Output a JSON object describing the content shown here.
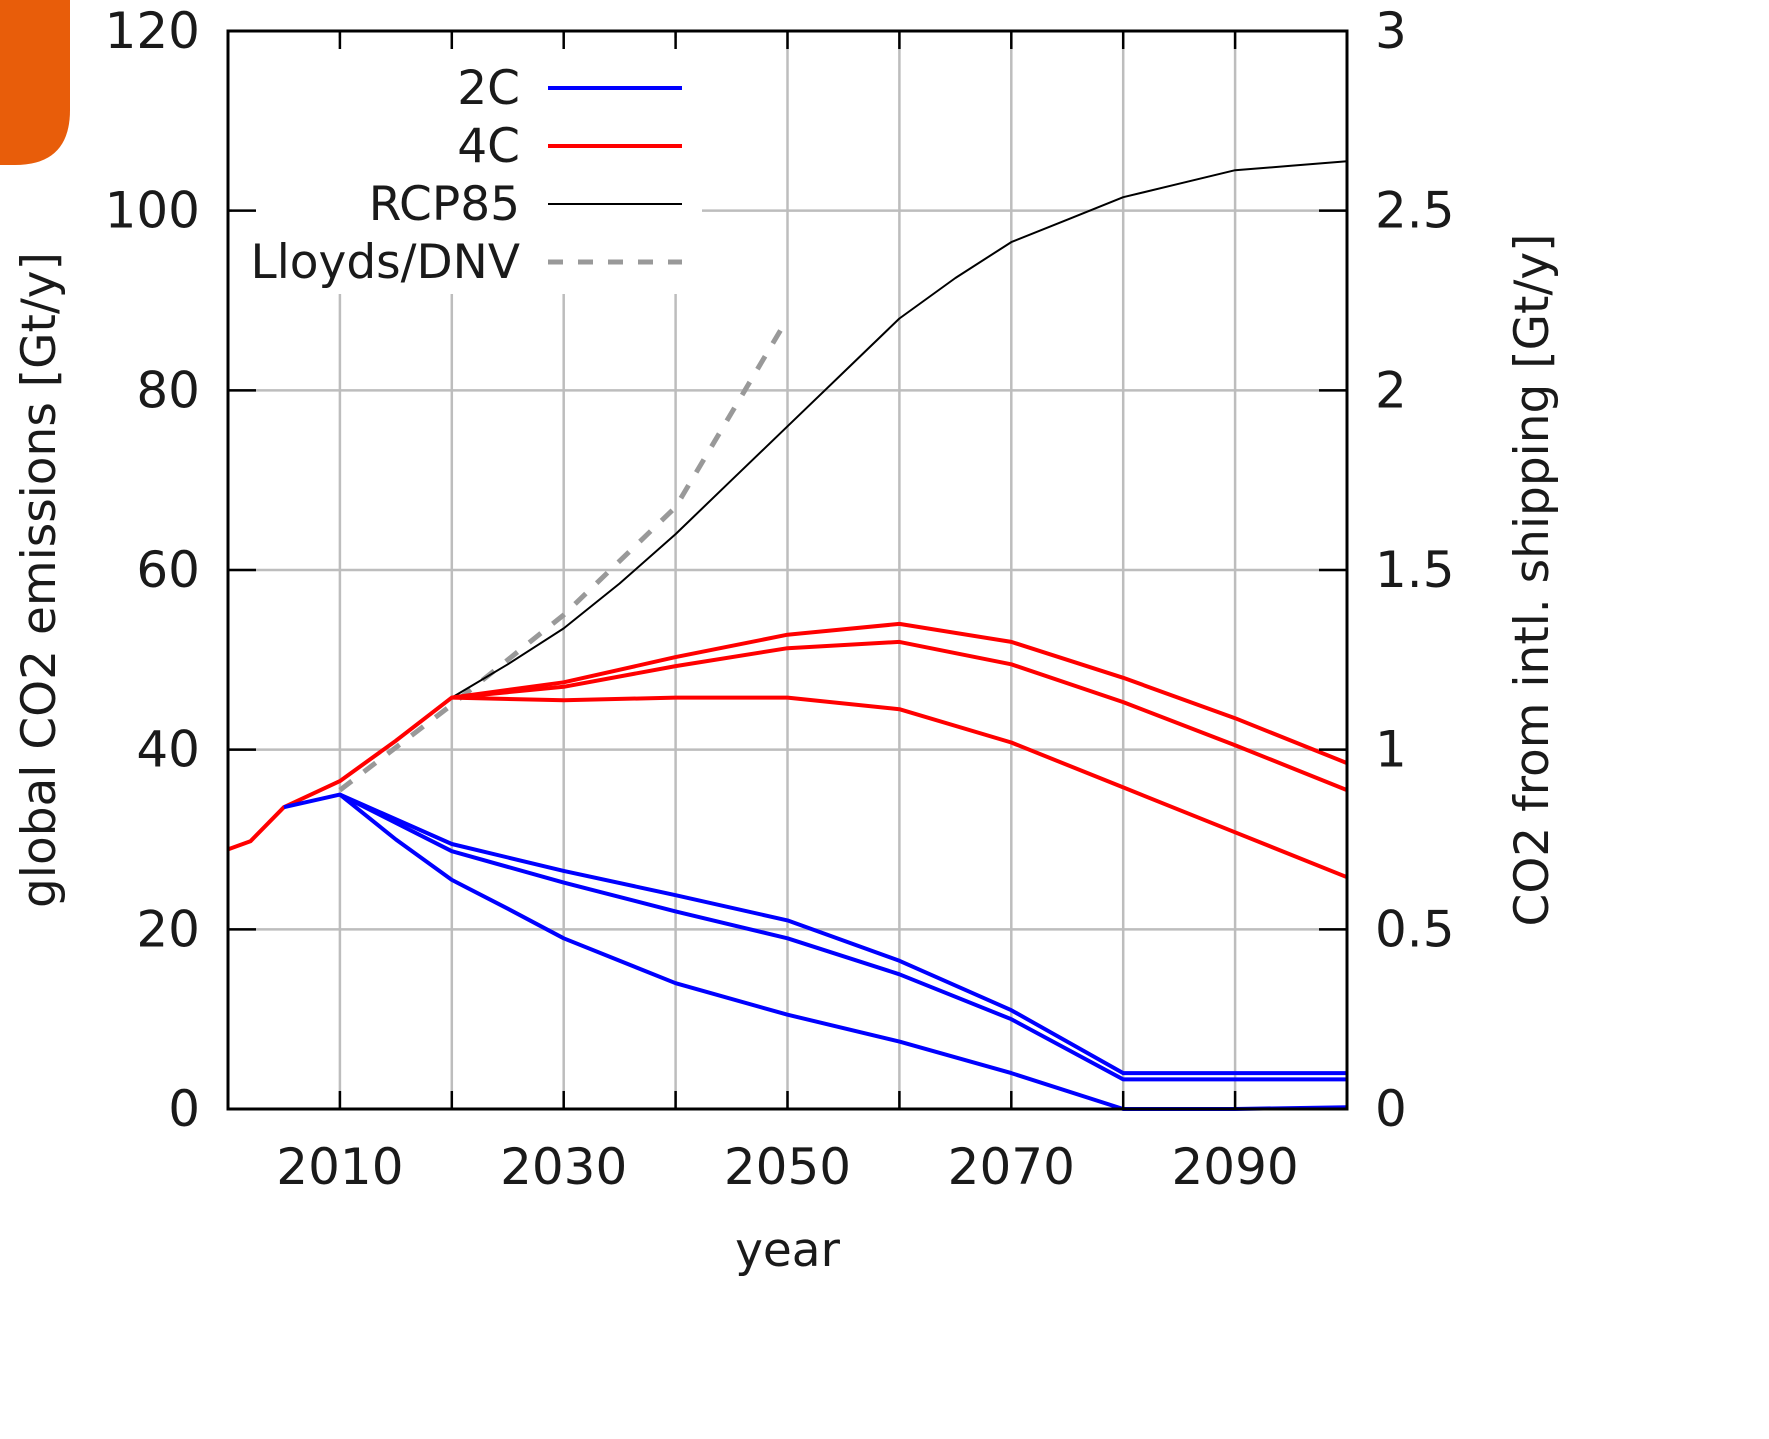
{
  "chart_data": {
    "type": "line",
    "xlabel": "year",
    "ylabel": "global CO2 emissions [Gt/y]",
    "y2label": "CO2 from intl. shipping [Gt/y]",
    "xlim": [
      2000,
      2100
    ],
    "ylim": [
      0,
      120
    ],
    "y2lim": [
      0,
      3
    ],
    "x_ticks": [
      2010,
      2030,
      2050,
      2070,
      2090
    ],
    "y_ticks": [
      0,
      20,
      40,
      60,
      80,
      100,
      120
    ],
    "y2_ticks": [
      "0",
      "0.5",
      "1",
      "1.5",
      "2",
      "2.5",
      "3"
    ],
    "grid": true,
    "legend_position": "top-left",
    "legend": [
      {
        "label": "2C",
        "color": "#0000ff",
        "style": "solid"
      },
      {
        "label": "4C",
        "color": "#ff0000",
        "style": "solid"
      },
      {
        "label": "RCP85",
        "color": "#000000",
        "style": "thin"
      },
      {
        "label": "Lloyds/DNV",
        "color": "#999999",
        "style": "dashed"
      }
    ],
    "series": [
      {
        "group": "RCP85",
        "axis": "left",
        "color": "#000000",
        "style": "thin",
        "x": [
          2000,
          2002,
          2005,
          2010,
          2015,
          2020,
          2025,
          2030,
          2035,
          2040,
          2045,
          2050,
          2055,
          2060,
          2065,
          2070,
          2075,
          2080,
          2085,
          2090,
          2095,
          2100
        ],
        "y": [
          28.9,
          29.8,
          33.6,
          36.5,
          41.0,
          45.8,
          49.5,
          53.5,
          58.5,
          64.0,
          70.0,
          76.0,
          82.0,
          88.0,
          92.5,
          96.5,
          99.0,
          101.5,
          103.0,
          104.5,
          105.0,
          105.5
        ]
      },
      {
        "group": "Lloyds/DNV",
        "axis": "left",
        "color": "#999999",
        "style": "dashed",
        "x": [
          2010,
          2020,
          2030,
          2040,
          2050
        ],
        "y": [
          35.5,
          45.0,
          55.0,
          67.0,
          88.0
        ]
      },
      {
        "group": "4C",
        "axis": "left",
        "color": "#ff0000",
        "style": "solid",
        "x": [
          2000,
          2002,
          2005,
          2010,
          2015,
          2020,
          2030,
          2040,
          2050,
          2060,
          2070,
          2080,
          2090,
          2100
        ],
        "y": [
          28.9,
          29.8,
          33.6,
          36.5,
          41.0,
          45.8,
          47.5,
          50.3,
          52.8,
          54.0,
          52.0,
          48.0,
          43.5,
          38.5
        ]
      },
      {
        "group": "4C",
        "axis": "left",
        "color": "#ff0000",
        "style": "solid",
        "x": [
          2020,
          2030,
          2040,
          2050,
          2060,
          2070,
          2080,
          2090,
          2100
        ],
        "y": [
          45.8,
          47.0,
          49.3,
          51.3,
          52.0,
          49.5,
          45.3,
          40.5,
          35.5
        ]
      },
      {
        "group": "4C",
        "axis": "left",
        "color": "#ff0000",
        "style": "solid",
        "x": [
          2020,
          2030,
          2040,
          2050,
          2060,
          2070,
          2080,
          2090,
          2100
        ],
        "y": [
          45.8,
          45.5,
          45.8,
          45.8,
          44.5,
          40.8,
          35.8,
          30.8,
          25.8
        ]
      },
      {
        "group": "2C",
        "axis": "left",
        "color": "#0000ff",
        "style": "solid",
        "x": [
          2005,
          2010,
          2020,
          2030,
          2040,
          2050,
          2060,
          2070,
          2080,
          2090,
          2100
        ],
        "y": [
          33.6,
          35.0,
          29.5,
          26.5,
          23.8,
          21.0,
          16.5,
          11.0,
          4.0,
          4.0,
          4.0
        ]
      },
      {
        "group": "2C",
        "axis": "left",
        "color": "#0000ff",
        "style": "solid",
        "x": [
          2010,
          2020,
          2030,
          2040,
          2050,
          2060,
          2070,
          2080,
          2090,
          2100
        ],
        "y": [
          35.0,
          28.7,
          25.2,
          22.0,
          19.0,
          15.0,
          10.0,
          3.3,
          3.3,
          3.3
        ]
      },
      {
        "group": "2C",
        "axis": "left",
        "color": "#0000ff",
        "style": "solid",
        "x": [
          2010,
          2015,
          2020,
          2025,
          2030,
          2040,
          2050,
          2060,
          2070,
          2080,
          2090,
          2100
        ],
        "y": [
          35.0,
          30.0,
          25.5,
          22.3,
          19.0,
          14.0,
          10.5,
          7.5,
          4.0,
          0.0,
          0.0,
          0.2
        ]
      }
    ]
  },
  "decor": {
    "corner_accent_color": "#e85d0a"
  }
}
